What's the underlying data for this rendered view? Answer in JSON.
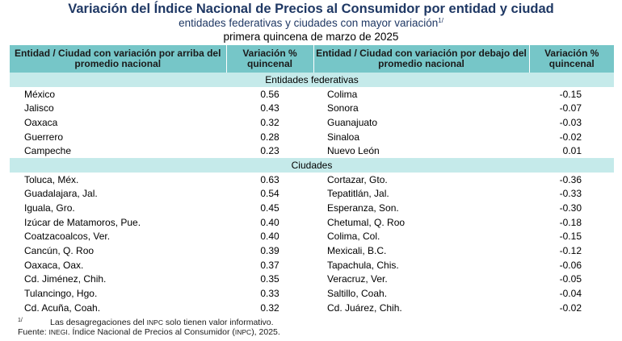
{
  "header": {
    "title": "Variación del Índice Nacional de Precios al Consumidor por entidad y ciudad",
    "subtitle": "entidades federativas y ciudades con mayor variación",
    "subtitle_mark": "1/",
    "date": "primera quincena de marzo de 2025"
  },
  "columns": {
    "above_name": "Entidad / Ciudad con variación por arriba del promedio nacional",
    "above_value": "Variación % quincenal",
    "below_name": "Entidad / Ciudad con variación por debajo del promedio nacional",
    "below_value": "Variación % quincenal"
  },
  "sections": [
    {
      "label": "Entidades federativas",
      "rows": [
        {
          "above_name": "México",
          "above_value": "0.56",
          "below_name": "Colima",
          "below_value": "-0.15"
        },
        {
          "above_name": "Jalisco",
          "above_value": "0.43",
          "below_name": "Sonora",
          "below_value": "-0.07"
        },
        {
          "above_name": "Oaxaca",
          "above_value": "0.32",
          "below_name": "Guanajuato",
          "below_value": "-0.03"
        },
        {
          "above_name": "Guerrero",
          "above_value": "0.28",
          "below_name": "Sinaloa",
          "below_value": "-0.02"
        },
        {
          "above_name": "Campeche",
          "above_value": "0.23",
          "below_name": "Nuevo León",
          "below_value": "0.01"
        }
      ]
    },
    {
      "label": "Ciudades",
      "rows": [
        {
          "above_name": "Toluca, Méx.",
          "above_value": "0.63",
          "below_name": "Cortazar, Gto.",
          "below_value": "-0.36"
        },
        {
          "above_name": "Guadalajara, Jal.",
          "above_value": "0.54",
          "below_name": "Tepatitlán, Jal.",
          "below_value": "-0.33"
        },
        {
          "above_name": "Iguala, Gro.",
          "above_value": "0.45",
          "below_name": "Esperanza, Son.",
          "below_value": "-0.30"
        },
        {
          "above_name": "Izúcar de Matamoros, Pue.",
          "above_value": "0.40",
          "below_name": "Chetumal, Q. Roo",
          "below_value": "-0.18"
        },
        {
          "above_name": "Coatzacoalcos, Ver.",
          "above_value": "0.40",
          "below_name": "Colima, Col.",
          "below_value": "-0.15"
        },
        {
          "above_name": "Cancún, Q. Roo",
          "above_value": "0.39",
          "below_name": "Mexicali, B.C.",
          "below_value": "-0.12"
        },
        {
          "above_name": "Oaxaca, Oax.",
          "above_value": "0.37",
          "below_name": "Tapachula, Chis.",
          "below_value": "-0.06"
        },
        {
          "above_name": "Cd. Jiménez, Chih.",
          "above_value": "0.35",
          "below_name": "Veracruz, Ver.",
          "below_value": "-0.05"
        },
        {
          "above_name": "Tulancingo, Hgo.",
          "above_value": "0.33",
          "below_name": "Saltillo, Coah.",
          "below_value": "-0.04"
        },
        {
          "above_name": "Cd. Acuña, Coah.",
          "above_value": "0.32",
          "below_name": "Cd. Juárez, Chih.",
          "below_value": "-0.02"
        }
      ]
    }
  ],
  "footnotes": {
    "note_mark": "1/",
    "note_a": "Las desagregaciones del ",
    "note_sc": "INPC",
    "note_b": " solo tienen valor informativo.",
    "source_a": "Fuente: ",
    "source_sc1": "INEGI",
    "source_b": ". Índice Nacional de Precios al Consumidor (",
    "source_sc2": "INPC",
    "source_c": "), 2025."
  },
  "colors": {
    "header_bg": "#76c6c8",
    "section_bg": "#c5eaea",
    "title_color": "#1f3864"
  }
}
